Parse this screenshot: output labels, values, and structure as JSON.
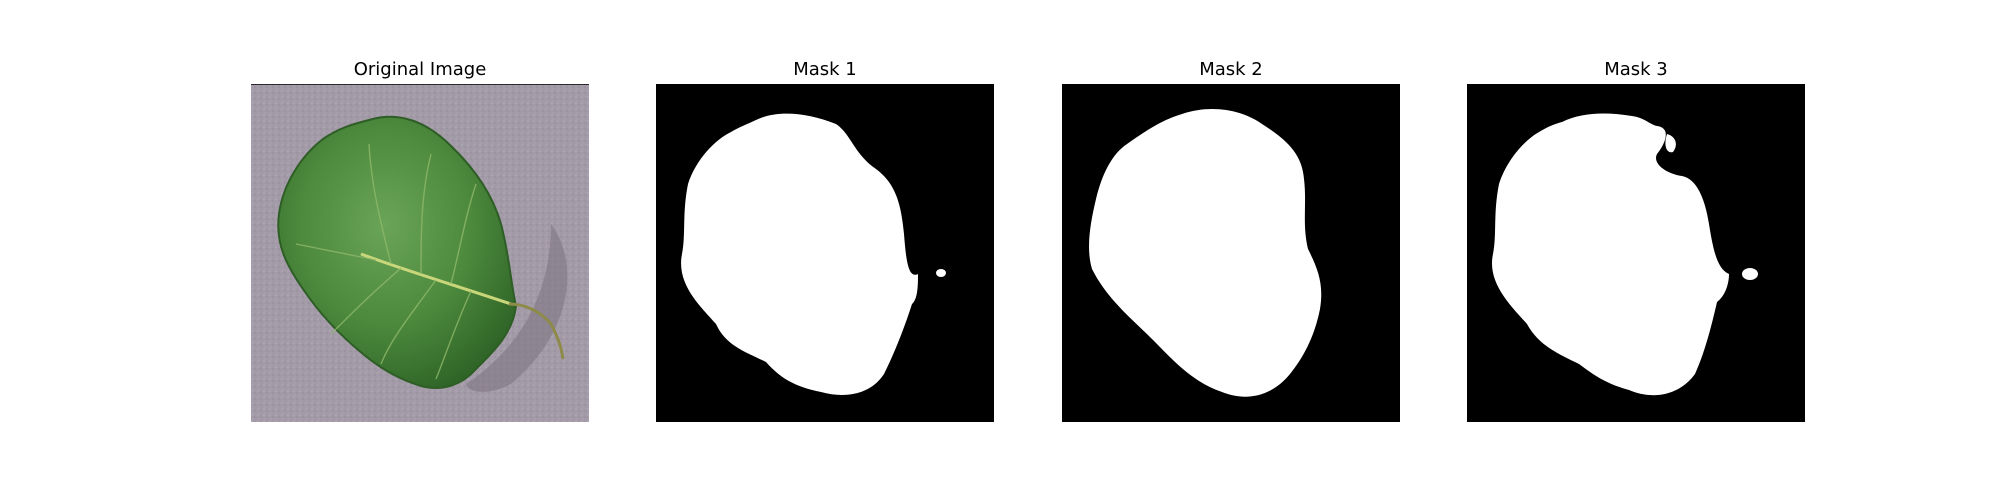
{
  "panels": [
    {
      "title": "Original Image"
    },
    {
      "title": "Mask 1"
    },
    {
      "title": "Mask 2"
    },
    {
      "title": "Mask 3"
    }
  ],
  "colors": {
    "mask_background": "#000000",
    "mask_foreground": "#ffffff",
    "leaf_green": "#4d8a3d",
    "backdrop_gray": "#a39aa8"
  }
}
